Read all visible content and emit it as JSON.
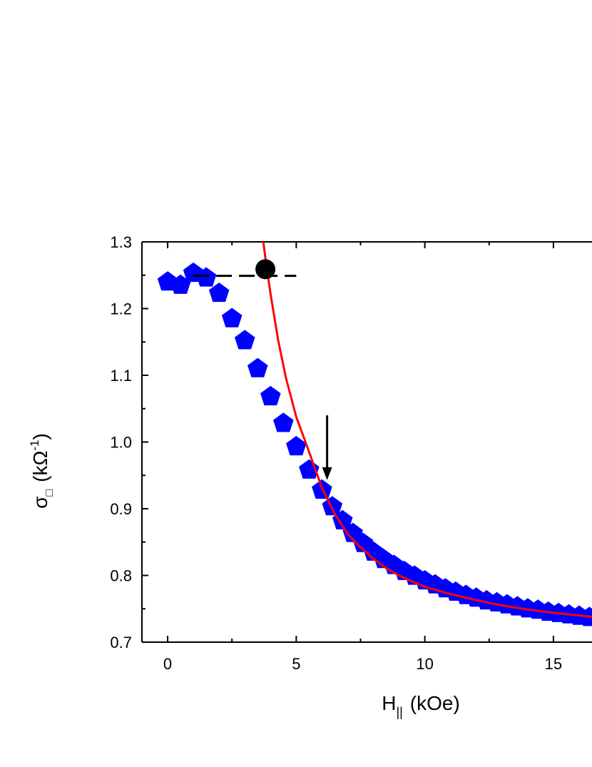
{
  "chart_data": {
    "type": "scatter",
    "xlabel": {
      "main": "H",
      "sub": "||",
      "unit": "(kOe)"
    },
    "ylabel": {
      "main": "σ",
      "sub": "□",
      "unit_pre": "(kΩ",
      "unit_sup": "-1",
      "unit_post": ")"
    },
    "xlim": [
      -1,
      16.5
    ],
    "ylim": [
      0.7,
      1.3
    ],
    "x_ticks": [
      0,
      5,
      10,
      15
    ],
    "x_tick_labels": [
      "0",
      "5",
      "10",
      "15"
    ],
    "y_ticks": [
      0.7,
      0.8,
      0.9,
      1.0,
      1.1,
      1.2,
      1.3
    ],
    "y_tick_labels": [
      "0.7",
      "0.8",
      "0.9",
      "1.0",
      "1.1",
      "1.2",
      "1.3"
    ],
    "grid": false,
    "series": [
      {
        "kind": "markers",
        "marker": "pentagon",
        "color": "#0000ff",
        "points": [
          [
            0.0,
            1.24
          ],
          [
            0.5,
            1.235
          ],
          [
            1.0,
            1.253
          ],
          [
            1.5,
            1.246
          ],
          [
            2.0,
            1.223
          ],
          [
            2.5,
            1.185
          ],
          [
            3.0,
            1.152
          ],
          [
            3.5,
            1.11
          ],
          [
            4.0,
            1.068
          ],
          [
            4.5,
            1.028
          ],
          [
            5.0,
            0.993
          ],
          [
            5.5,
            0.958
          ],
          [
            6.0,
            0.928
          ],
          [
            6.4,
            0.903
          ],
          [
            6.8,
            0.882
          ],
          [
            7.2,
            0.863
          ],
          [
            7.6,
            0.848
          ],
          [
            8.0,
            0.835
          ],
          [
            8.4,
            0.824
          ],
          [
            8.8,
            0.815
          ],
          [
            9.2,
            0.806
          ],
          [
            9.6,
            0.799
          ],
          [
            10.0,
            0.792
          ],
          [
            10.4,
            0.786
          ],
          [
            10.8,
            0.78
          ],
          [
            11.2,
            0.775
          ],
          [
            11.6,
            0.77
          ],
          [
            12.0,
            0.766
          ],
          [
            12.4,
            0.762
          ],
          [
            12.8,
            0.759
          ],
          [
            13.2,
            0.756
          ],
          [
            13.6,
            0.753
          ],
          [
            14.0,
            0.75
          ],
          [
            14.4,
            0.748
          ],
          [
            14.8,
            0.745
          ],
          [
            15.2,
            0.743
          ],
          [
            15.6,
            0.741
          ],
          [
            16.0,
            0.739
          ],
          [
            16.4,
            0.737
          ]
        ]
      },
      {
        "kind": "line",
        "color": "#ff0000",
        "points": [
          [
            3.72,
            1.3
          ],
          [
            3.8,
            1.276
          ],
          [
            4.0,
            1.222
          ],
          [
            4.3,
            1.152
          ],
          [
            4.6,
            1.096
          ],
          [
            5.0,
            1.038
          ],
          [
            5.5,
            0.985
          ],
          [
            6.0,
            0.931
          ],
          [
            6.5,
            0.892
          ],
          [
            7.0,
            0.862
          ],
          [
            7.5,
            0.842
          ],
          [
            8.0,
            0.825
          ],
          [
            8.5,
            0.811
          ],
          [
            9.0,
            0.8
          ],
          [
            9.5,
            0.791
          ],
          [
            10.0,
            0.783
          ],
          [
            11.0,
            0.772
          ],
          [
            12.0,
            0.763
          ],
          [
            13.0,
            0.755
          ],
          [
            14.0,
            0.749
          ],
          [
            15.0,
            0.744
          ],
          [
            16.0,
            0.74
          ],
          [
            16.5,
            0.738
          ]
        ]
      },
      {
        "kind": "dashed-line",
        "color": "#000000",
        "points": [
          [
            1.0,
            1.249
          ],
          [
            5.0,
            1.249
          ]
        ]
      },
      {
        "kind": "marker",
        "marker": "circle",
        "color": "#000000",
        "points": [
          [
            3.8,
            1.259
          ]
        ]
      }
    ],
    "annotations": [
      {
        "kind": "arrow",
        "color": "#000000",
        "from": [
          6.2,
          1.04
        ],
        "to": [
          6.2,
          0.945
        ]
      }
    ]
  }
}
